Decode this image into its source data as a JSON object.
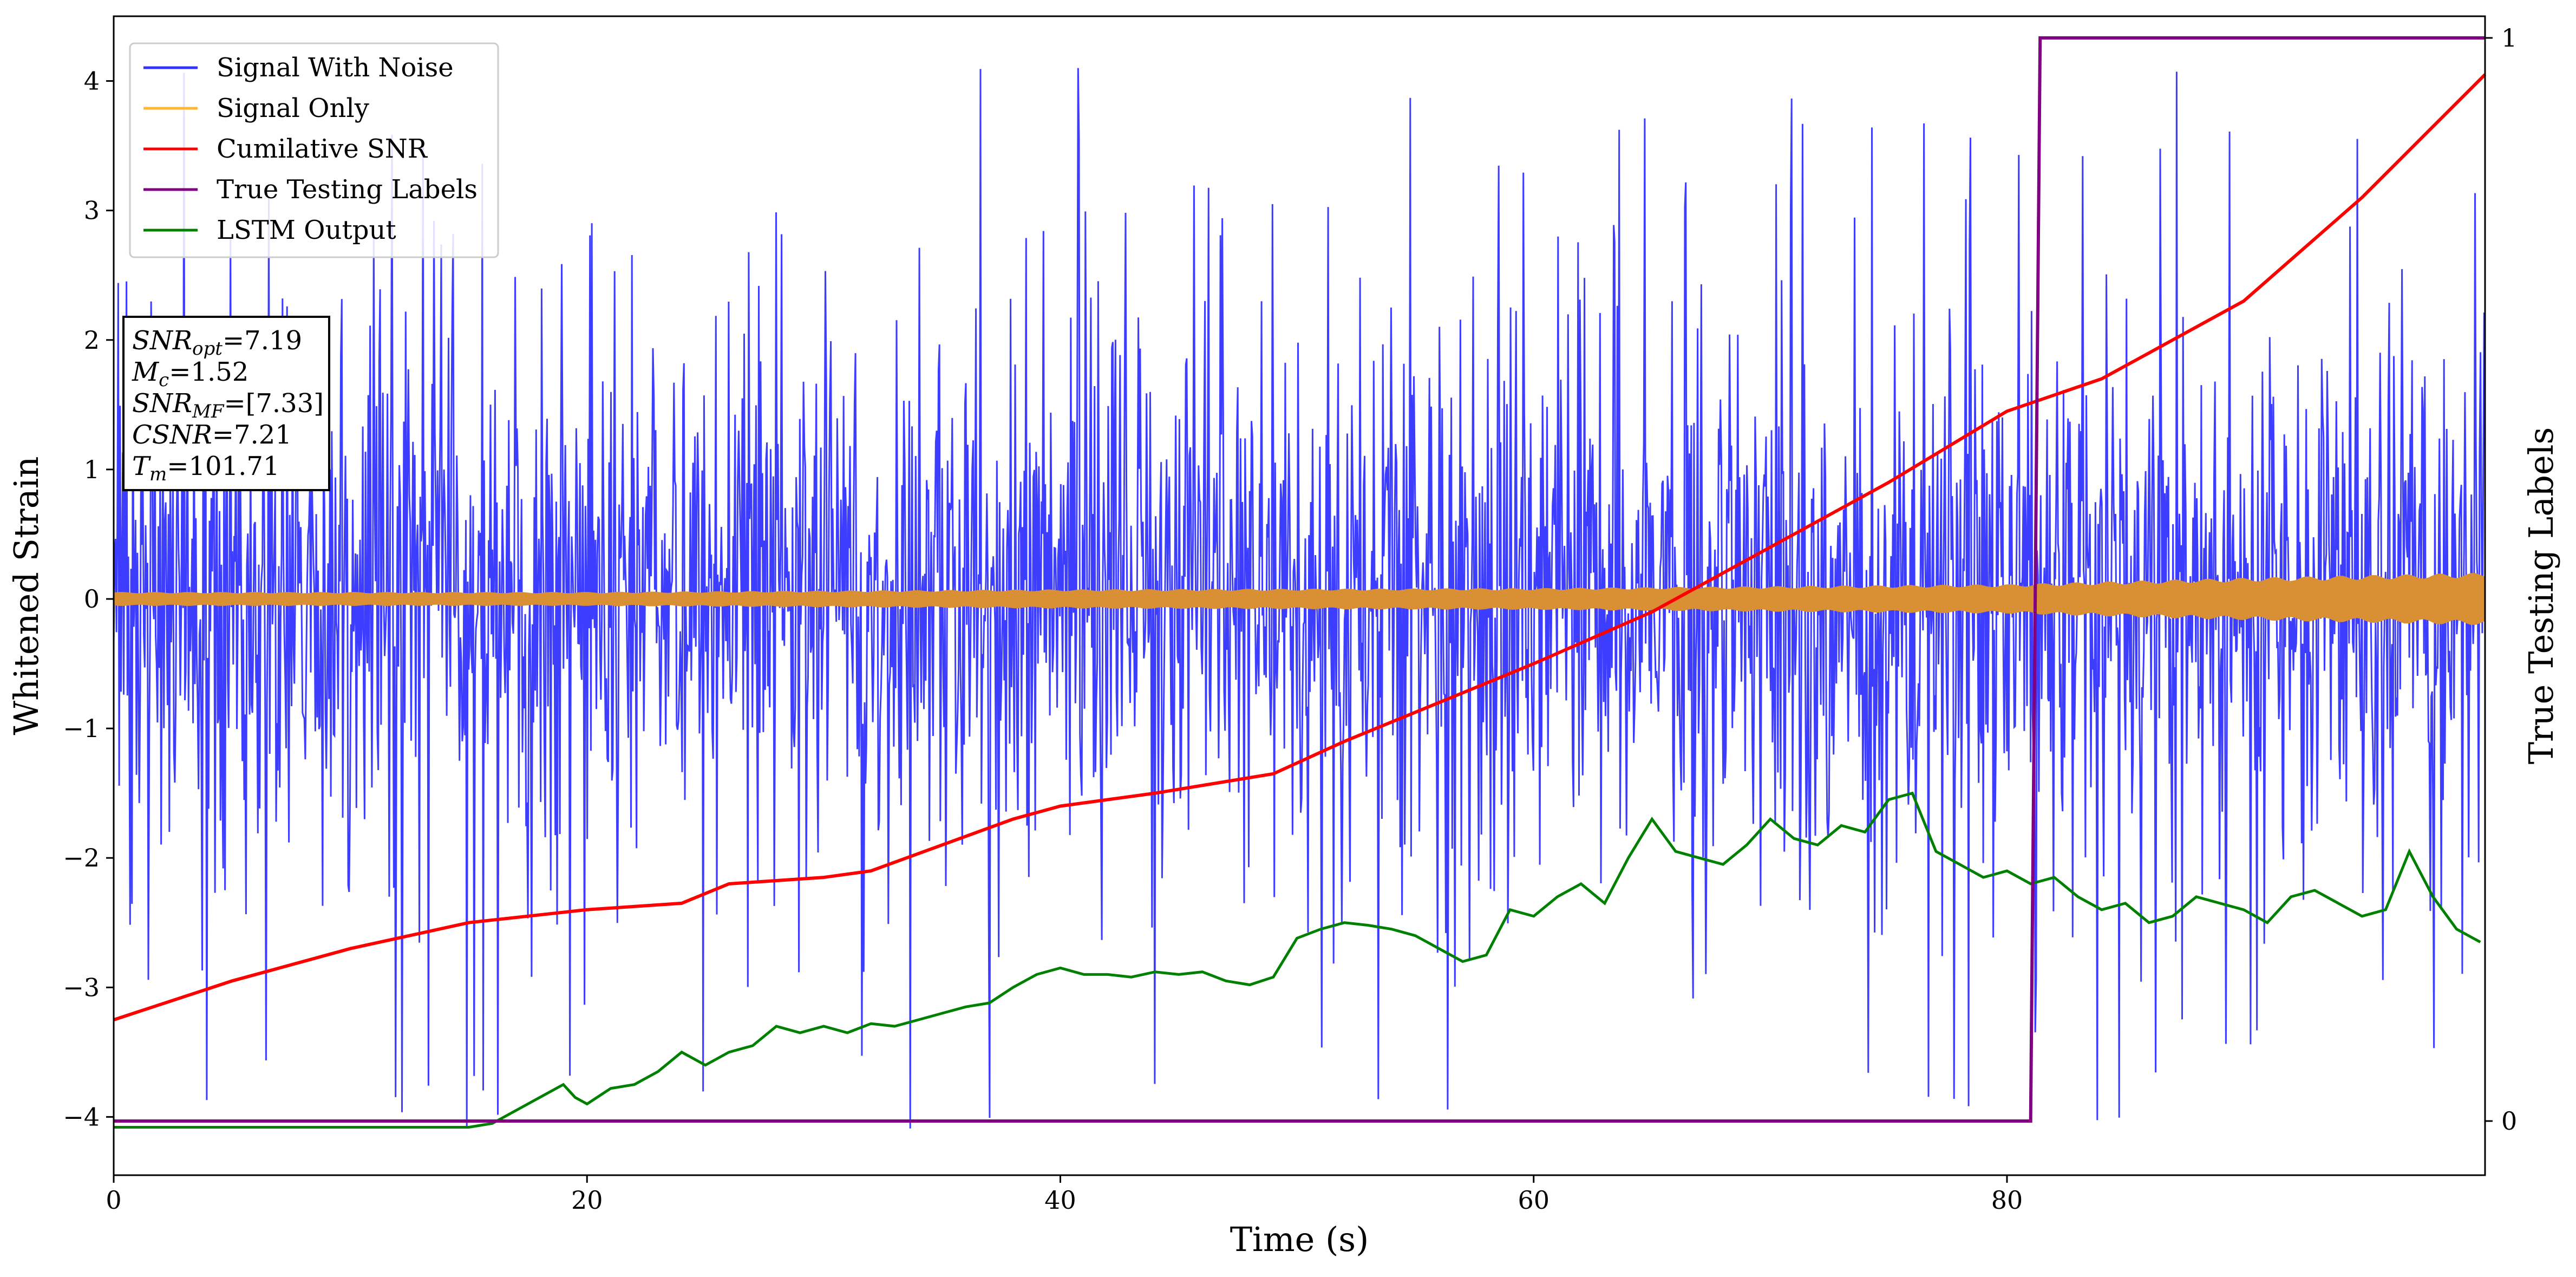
{
  "chart_data": {
    "type": "line",
    "title": "",
    "xlabel": "Time (s)",
    "ylabel": "Whitened Strain",
    "ylabel_right": "True Testing Labels",
    "xlim": [
      0,
      100.2
    ],
    "ylim": [
      -4.45,
      4.5
    ],
    "ylim_right": [
      -0.05,
      1.02
    ],
    "x_ticks": [
      0,
      20,
      40,
      60,
      80
    ],
    "x_tick_labels": [
      "0",
      "20",
      "40",
      "60",
      "80"
    ],
    "y_ticks": [
      -4,
      -3,
      -2,
      -1,
      0,
      1,
      2,
      3,
      4
    ],
    "y_tick_labels": [
      "−4",
      "−3",
      "−2",
      "−1",
      "0",
      "1",
      "2",
      "3",
      "4"
    ],
    "y_right_ticks": [
      0,
      1
    ],
    "y_right_tick_labels": [
      "0",
      "1"
    ],
    "grid": false,
    "legend_position": "top-left",
    "series": [
      {
        "name": "Signal With Noise",
        "color": "#3333ff",
        "axis": "left",
        "kind": "noise",
        "x_range": [
          0,
          100.2
        ],
        "typical_amplitude": 1.0,
        "peak_amplitude": 4.1
      },
      {
        "name": "Signal Only",
        "color": "#ffb733",
        "axis": "left",
        "kind": "chirp-envelope",
        "x": [
          0,
          20,
          40,
          60,
          80,
          90,
          100.2
        ],
        "amplitude": [
          0.05,
          0.05,
          0.07,
          0.08,
          0.11,
          0.16,
          0.2
        ]
      },
      {
        "name": "Cumilative SNR",
        "color": "#ff0000",
        "axis": "left",
        "kind": "line",
        "x": [
          0,
          5,
          10,
          15,
          20,
          24,
          26,
          30,
          32,
          35,
          38,
          40,
          44,
          49,
          52,
          56,
          60,
          65,
          70,
          75,
          80,
          84,
          86,
          90,
          95,
          100.2
        ],
        "y": [
          -3.25,
          -2.95,
          -2.7,
          -2.5,
          -2.4,
          -2.35,
          -2.2,
          -2.15,
          -2.1,
          -1.9,
          -1.7,
          -1.6,
          -1.5,
          -1.35,
          -1.1,
          -0.8,
          -0.5,
          -0.1,
          0.4,
          0.9,
          1.45,
          1.7,
          1.9,
          2.3,
          3.1,
          4.05
        ]
      },
      {
        "name": "True Testing Labels",
        "color": "#800080",
        "axis": "right",
        "kind": "step",
        "x": [
          0,
          81.0,
          81.4,
          100.2
        ],
        "y": [
          0,
          0,
          1,
          1
        ]
      },
      {
        "name": "LSTM Output",
        "color": "#008000",
        "axis": "left",
        "kind": "line",
        "x": [
          0,
          15,
          16,
          17,
          18,
          19,
          19.5,
          20,
          21,
          22,
          23,
          24,
          25,
          26,
          27,
          28,
          29,
          30,
          31,
          32,
          33,
          34,
          35,
          36,
          37,
          38,
          39,
          40,
          41,
          42,
          43,
          44,
          45,
          46,
          47,
          48,
          49,
          50,
          51,
          52,
          53,
          54,
          55,
          56,
          57,
          58,
          59,
          60,
          61,
          62,
          63,
          64,
          65,
          66,
          67,
          68,
          69,
          70,
          71,
          72,
          73,
          74,
          75,
          76,
          77,
          78,
          79,
          80,
          81,
          82,
          83,
          84,
          85,
          86,
          87,
          88,
          89,
          90,
          91,
          92,
          93,
          94,
          95,
          96,
          97,
          98,
          99,
          100
        ],
        "y": [
          -4.08,
          -4.08,
          -4.05,
          -3.95,
          -3.85,
          -3.75,
          -3.85,
          -3.9,
          -3.78,
          -3.75,
          -3.65,
          -3.5,
          -3.6,
          -3.5,
          -3.45,
          -3.3,
          -3.35,
          -3.3,
          -3.35,
          -3.28,
          -3.3,
          -3.25,
          -3.2,
          -3.15,
          -3.12,
          -3.0,
          -2.9,
          -2.85,
          -2.9,
          -2.9,
          -2.92,
          -2.88,
          -2.9,
          -2.88,
          -2.95,
          -2.98,
          -2.92,
          -2.62,
          -2.55,
          -2.5,
          -2.52,
          -2.55,
          -2.6,
          -2.7,
          -2.8,
          -2.75,
          -2.4,
          -2.45,
          -2.3,
          -2.2,
          -2.35,
          -2.0,
          -1.7,
          -1.95,
          -2.0,
          -2.05,
          -1.9,
          -1.7,
          -1.85,
          -1.9,
          -1.75,
          -1.8,
          -1.55,
          -1.5,
          -1.95,
          -2.05,
          -2.15,
          -2.1,
          -2.2,
          -2.15,
          -2.3,
          -2.4,
          -2.35,
          -2.5,
          -2.45,
          -2.3,
          -2.35,
          -2.4,
          -2.5,
          -2.3,
          -2.25,
          -2.35,
          -2.45,
          -2.4,
          -1.95,
          -2.3,
          -2.55,
          -2.65
        ]
      }
    ],
    "annotation": {
      "lines": [
        {
          "sym": "SNR",
          "sub": "opt",
          "rest": "=7.19"
        },
        {
          "sym": "M",
          "sub": "c",
          "rest": "=1.52"
        },
        {
          "sym": "SNR",
          "sub": "MF",
          "rest": "=[7.33]"
        },
        {
          "sym": "CSNR",
          "sub": "",
          "rest": "=7.21"
        },
        {
          "sym": "T",
          "sub": "m",
          "rest": "=101.71"
        }
      ]
    }
  }
}
